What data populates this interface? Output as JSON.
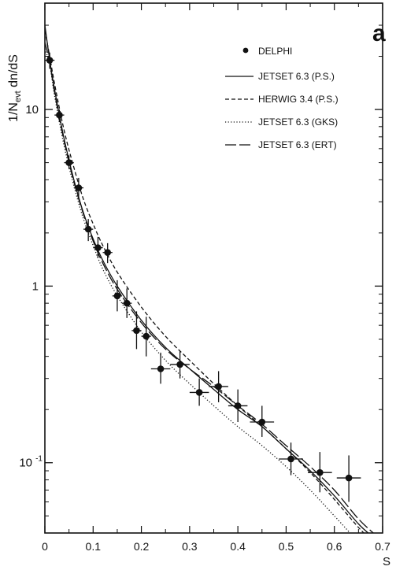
{
  "panel_label": "a",
  "colors": {
    "ink": "#111111",
    "background": "#ffffff"
  },
  "chart_data": {
    "type": "scatter",
    "title": "",
    "xlabel": "S",
    "ylabel": "1/N_evt dn/dS",
    "xlim": [
      0,
      0.7
    ],
    "ylim": [
      0.04,
      40
    ],
    "yscale": "log",
    "grid": false,
    "legend_position": "top-right",
    "x_ticks": [
      {
        "value": 0,
        "label": "0"
      },
      {
        "value": 0.1,
        "label": "0.1"
      },
      {
        "value": 0.2,
        "label": "0.2"
      },
      {
        "value": 0.3,
        "label": "0.3"
      },
      {
        "value": 0.4,
        "label": "0.4"
      },
      {
        "value": 0.5,
        "label": "0.5"
      },
      {
        "value": 0.6,
        "label": "0.6"
      },
      {
        "value": 0.7,
        "label": "0.7"
      }
    ],
    "y_ticks": [
      {
        "value": 0.1,
        "label": "10",
        "exponent": "-1"
      },
      {
        "value": 1,
        "label": "1",
        "exponent": ""
      },
      {
        "value": 10,
        "label": "10",
        "exponent": ""
      }
    ],
    "data_series": {
      "name": "DELPHI",
      "points": [
        {
          "x": 0.01,
          "y": 19.0,
          "xerr": 0.01,
          "ylo": 17.0,
          "yhi": 21.0
        },
        {
          "x": 0.03,
          "y": 9.3,
          "xerr": 0.01,
          "ylo": 8.5,
          "yhi": 10.0
        },
        {
          "x": 0.05,
          "y": 5.0,
          "xerr": 0.01,
          "ylo": 4.6,
          "yhi": 5.5
        },
        {
          "x": 0.07,
          "y": 3.6,
          "xerr": 0.01,
          "ylo": 3.1,
          "yhi": 4.1
        },
        {
          "x": 0.09,
          "y": 2.1,
          "xerr": 0.01,
          "ylo": 1.8,
          "yhi": 2.4
        },
        {
          "x": 0.11,
          "y": 1.65,
          "xerr": 0.01,
          "ylo": 1.45,
          "yhi": 1.9
        },
        {
          "x": 0.13,
          "y": 1.55,
          "xerr": 0.01,
          "ylo": 1.35,
          "yhi": 1.75
        },
        {
          "x": 0.15,
          "y": 0.88,
          "xerr": 0.01,
          "ylo": 0.72,
          "yhi": 1.08
        },
        {
          "x": 0.17,
          "y": 0.8,
          "xerr": 0.01,
          "ylo": 0.66,
          "yhi": 0.97
        },
        {
          "x": 0.19,
          "y": 0.56,
          "xerr": 0.01,
          "ylo": 0.44,
          "yhi": 0.72
        },
        {
          "x": 0.21,
          "y": 0.52,
          "xerr": 0.01,
          "ylo": 0.4,
          "yhi": 0.67
        },
        {
          "x": 0.24,
          "y": 0.34,
          "xerr": 0.02,
          "ylo": 0.28,
          "yhi": 0.42
        },
        {
          "x": 0.28,
          "y": 0.36,
          "xerr": 0.02,
          "ylo": 0.3,
          "yhi": 0.43
        },
        {
          "x": 0.32,
          "y": 0.25,
          "xerr": 0.02,
          "ylo": 0.21,
          "yhi": 0.3
        },
        {
          "x": 0.36,
          "y": 0.27,
          "xerr": 0.02,
          "ylo": 0.22,
          "yhi": 0.33
        },
        {
          "x": 0.4,
          "y": 0.21,
          "xerr": 0.02,
          "ylo": 0.17,
          "yhi": 0.26
        },
        {
          "x": 0.45,
          "y": 0.17,
          "xerr": 0.025,
          "ylo": 0.14,
          "yhi": 0.21
        },
        {
          "x": 0.51,
          "y": 0.105,
          "xerr": 0.025,
          "ylo": 0.085,
          "yhi": 0.13
        },
        {
          "x": 0.57,
          "y": 0.088,
          "xerr": 0.025,
          "ylo": 0.068,
          "yhi": 0.115
        },
        {
          "x": 0.63,
          "y": 0.082,
          "xerr": 0.025,
          "ylo": 0.06,
          "yhi": 0.11
        }
      ]
    },
    "series": [
      {
        "name": "JETSET 6.3 (P.S.)",
        "style": "solid",
        "x": [
          0.0,
          0.01,
          0.02,
          0.04,
          0.06,
          0.08,
          0.1,
          0.12,
          0.15,
          0.2,
          0.25,
          0.3,
          0.35,
          0.4,
          0.45,
          0.5,
          0.55,
          0.6,
          0.65,
          0.68
        ],
        "y": [
          30,
          19,
          13,
          6.8,
          4.0,
          2.6,
          1.85,
          1.4,
          1.0,
          0.64,
          0.45,
          0.34,
          0.26,
          0.2,
          0.16,
          0.12,
          0.09,
          0.065,
          0.045,
          0.038
        ]
      },
      {
        "name": "HERWIG 3.4 (P.S.)",
        "style": "short-dash",
        "x": [
          0.0,
          0.01,
          0.02,
          0.04,
          0.06,
          0.08,
          0.1,
          0.12,
          0.15,
          0.2,
          0.25,
          0.3,
          0.35,
          0.4,
          0.45,
          0.5,
          0.55,
          0.6,
          0.65,
          0.67
        ],
        "y": [
          28,
          20,
          14,
          7.6,
          4.7,
          3.1,
          2.25,
          1.7,
          1.2,
          0.76,
          0.52,
          0.38,
          0.28,
          0.21,
          0.16,
          0.12,
          0.088,
          0.062,
          0.043,
          0.038
        ]
      },
      {
        "name": "JETSET 6.3 (GKS)",
        "style": "dotted",
        "x": [
          0.0,
          0.01,
          0.02,
          0.04,
          0.06,
          0.08,
          0.1,
          0.12,
          0.15,
          0.2,
          0.25,
          0.3,
          0.35,
          0.4,
          0.45,
          0.5,
          0.55,
          0.6,
          0.64
        ],
        "y": [
          22,
          18,
          12,
          6.2,
          3.7,
          2.4,
          1.7,
          1.25,
          0.88,
          0.55,
          0.38,
          0.28,
          0.21,
          0.16,
          0.125,
          0.095,
          0.07,
          0.05,
          0.038
        ]
      },
      {
        "name": "JETSET 6.3 (ERT)",
        "style": "long-dash",
        "x": [
          0.0,
          0.01,
          0.02,
          0.04,
          0.06,
          0.08,
          0.1,
          0.12,
          0.15,
          0.2,
          0.25,
          0.3,
          0.35,
          0.4,
          0.45,
          0.5,
          0.55,
          0.6,
          0.65,
          0.69
        ],
        "y": [
          24,
          18.5,
          12.5,
          6.6,
          3.9,
          2.55,
          1.8,
          1.35,
          0.96,
          0.62,
          0.44,
          0.34,
          0.27,
          0.21,
          0.165,
          0.125,
          0.095,
          0.07,
          0.048,
          0.038
        ]
      }
    ]
  }
}
